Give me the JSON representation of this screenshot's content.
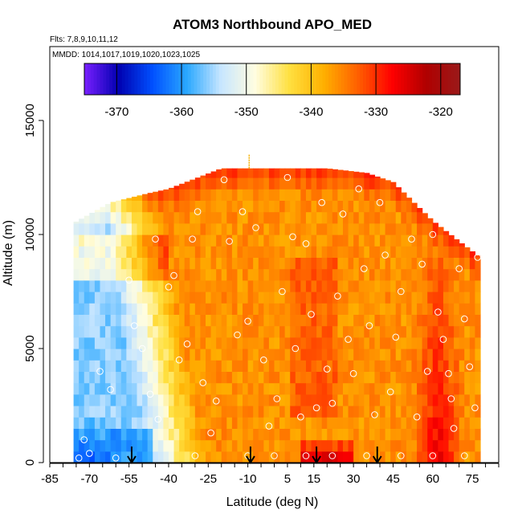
{
  "chart_data": {
    "type": "heatmap",
    "title": "ATOM3 Northbound APO_MED",
    "flights_label": "Flts: 7,8,9,10,11,12",
    "dates_label": "MMDD: 1014,1017,1019,1020,1023,1025",
    "xlabel": "Latitude (deg N)",
    "ylabel": "Altitude (m)",
    "xlim": [
      -85,
      85
    ],
    "ylim": [
      0,
      18000
    ],
    "x_ticks": [
      -85,
      -70,
      -55,
      -40,
      -25,
      -10,
      5,
      15,
      30,
      45,
      60,
      75
    ],
    "y_ticks": [
      0,
      5000,
      10000,
      15000
    ],
    "colorbar": {
      "range": [
        -375,
        -317
      ],
      "ticks": [
        -370,
        -360,
        -350,
        -340,
        -330,
        -320
      ],
      "colors": [
        "#7a1fff",
        "#0000b0",
        "#0050ff",
        "#2aa8ff",
        "#c8e6ff",
        "#fffde0",
        "#ffe040",
        "#ffb000",
        "#ff6000",
        "#ff0000",
        "#b00000",
        "#9a1a1a"
      ]
    },
    "arrow_latitudes": [
      -54,
      -9,
      16,
      39
    ],
    "domain": {
      "lat_range": [
        -76,
        78
      ],
      "alt_top_points": [
        [
          -76,
          10500
        ],
        [
          -62,
          11400
        ],
        [
          -48,
          11800
        ],
        [
          -40,
          12000
        ],
        [
          -20,
          12900
        ],
        [
          0,
          12900
        ],
        [
          20,
          12900
        ],
        [
          35,
          12700
        ],
        [
          45,
          12300
        ],
        [
          52,
          11500
        ],
        [
          60,
          10600
        ],
        [
          70,
          9700
        ],
        [
          78,
          9000
        ]
      ]
    },
    "value_field": {
      "base": -336,
      "west_edge_value": -356,
      "west_gradient_lat_range": [
        -76,
        -20
      ],
      "surface_hotspot_lat_range": [
        10,
        30
      ],
      "surface_hotspot_value": -323,
      "north_ridge_lat": 62,
      "north_ridge_value": -326
    },
    "sample_points": [
      [
        -74,
        200
      ],
      [
        -72,
        1000
      ],
      [
        -70,
        400
      ],
      [
        -66,
        4000
      ],
      [
        -62,
        3200
      ],
      [
        -60,
        200
      ],
      [
        -55,
        8000
      ],
      [
        -53,
        6000
      ],
      [
        -50,
        5000
      ],
      [
        -47,
        3000
      ],
      [
        -45,
        9800
      ],
      [
        -44,
        1900
      ],
      [
        -40,
        7700
      ],
      [
        -38,
        8200
      ],
      [
        -36,
        4500
      ],
      [
        -33,
        5200
      ],
      [
        -31,
        9800
      ],
      [
        -29,
        11000
      ],
      [
        -27,
        3500
      ],
      [
        -24,
        1300
      ],
      [
        -22,
        2700
      ],
      [
        -19,
        12400
      ],
      [
        -17,
        9700
      ],
      [
        -14,
        5600
      ],
      [
        -12,
        11000
      ],
      [
        -10,
        6200
      ],
      [
        -7,
        10300
      ],
      [
        -4,
        4500
      ],
      [
        -2,
        1600
      ],
      [
        1,
        2800
      ],
      [
        3,
        7500
      ],
      [
        5,
        12500
      ],
      [
        7,
        9900
      ],
      [
        8,
        5000
      ],
      [
        10,
        2000
      ],
      [
        12,
        9600
      ],
      [
        14,
        6500
      ],
      [
        16,
        2400
      ],
      [
        18,
        11400
      ],
      [
        20,
        4100
      ],
      [
        22,
        2600
      ],
      [
        24,
        7300
      ],
      [
        26,
        10900
      ],
      [
        28,
        5400
      ],
      [
        30,
        3900
      ],
      [
        32,
        12000
      ],
      [
        34,
        8500
      ],
      [
        36,
        6000
      ],
      [
        38,
        2100
      ],
      [
        40,
        11400
      ],
      [
        42,
        9100
      ],
      [
        44,
        3100
      ],
      [
        46,
        5500
      ],
      [
        48,
        7500
      ],
      [
        50,
        12600
      ],
      [
        52,
        9800
      ],
      [
        54,
        2000
      ],
      [
        56,
        8700
      ],
      [
        58,
        4000
      ],
      [
        60,
        10000
      ],
      [
        62,
        6600
      ],
      [
        64,
        5400
      ],
      [
        66,
        3900
      ],
      [
        67,
        2800
      ],
      [
        68,
        1500
      ],
      [
        70,
        8500
      ],
      [
        72,
        6300
      ],
      [
        74,
        4200
      ],
      [
        76,
        2400
      ],
      [
        77,
        9000
      ],
      [
        -30,
        300
      ],
      [
        -10,
        300
      ],
      [
        0,
        300
      ],
      [
        12,
        300
      ],
      [
        22,
        300
      ],
      [
        35,
        300
      ],
      [
        48,
        300
      ],
      [
        60,
        300
      ],
      [
        72,
        300
      ]
    ]
  }
}
